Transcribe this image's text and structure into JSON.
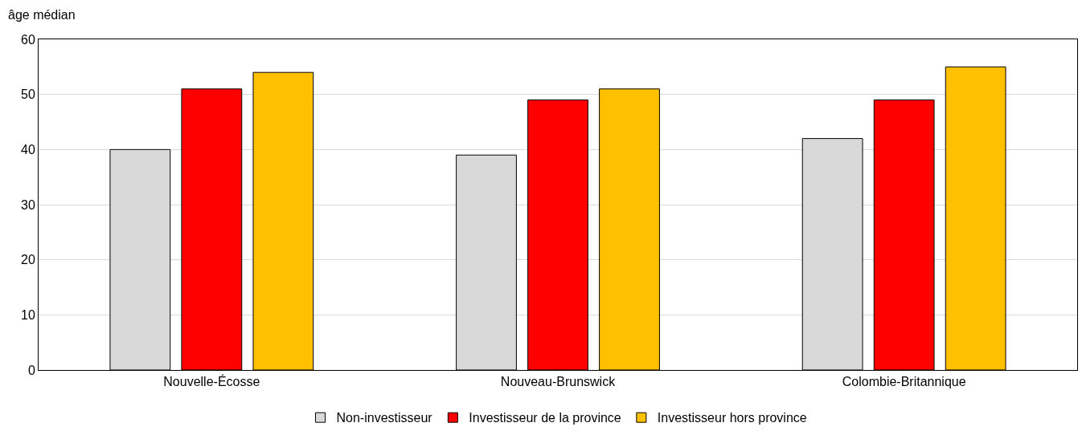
{
  "chart_data": {
    "type": "bar",
    "ylabel": "âge médian",
    "categories": [
      "Nouvelle-Écosse",
      "Nouveau-Brunswick",
      "Colombie-Britannique"
    ],
    "series": [
      {
        "name": "Non-investisseur",
        "color": "#d9d9d9",
        "values": [
          40,
          39,
          42
        ]
      },
      {
        "name": "Investisseur de la province",
        "color": "#ff0000",
        "values": [
          51,
          49,
          49
        ]
      },
      {
        "name": "Investisseur hors province",
        "color": "#ffc000",
        "values": [
          54,
          51,
          55
        ]
      }
    ],
    "ylim": [
      0,
      60
    ],
    "yticks": [
      0,
      10,
      20,
      30,
      40,
      50,
      60
    ],
    "grid": "y",
    "legend": "bottom"
  }
}
